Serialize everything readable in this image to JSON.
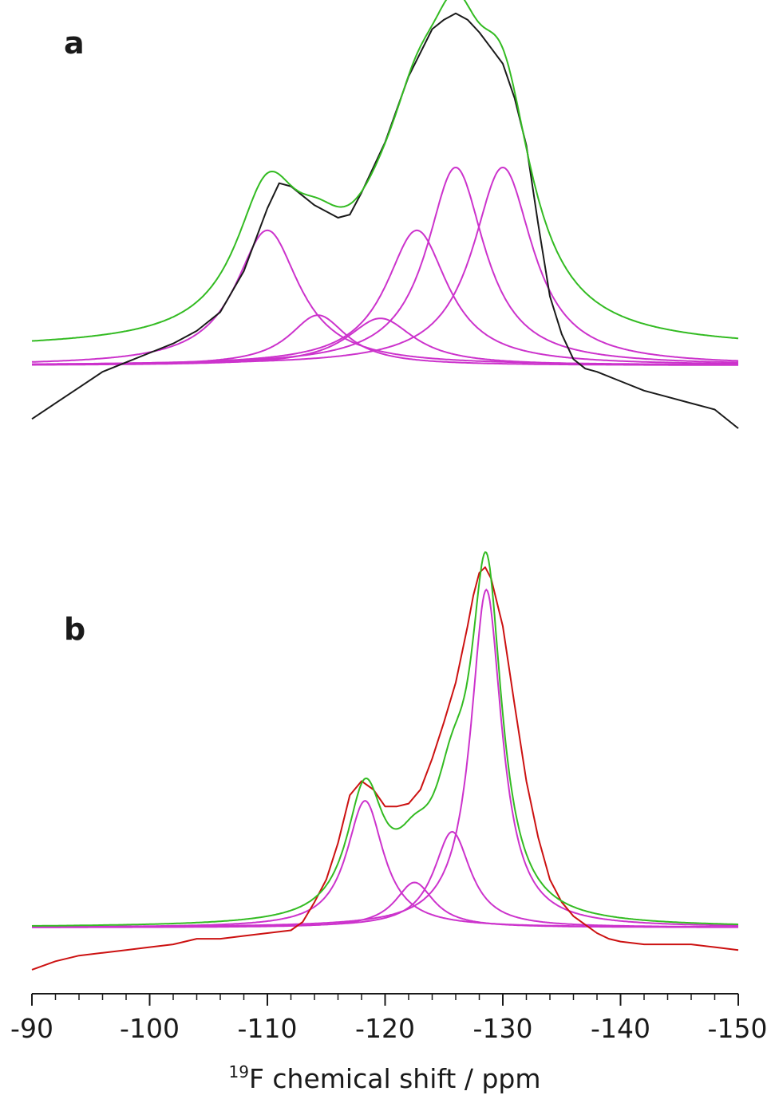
{
  "chart_data": {
    "type": "line",
    "xlabel_sup": "19",
    "xlabel_main": "F chemical shift / ppm",
    "xlim": [
      -90,
      -150
    ],
    "x_ticks_major": [
      -90,
      -100,
      -110,
      -120,
      -130,
      -140,
      -150
    ],
    "x_tick_labels": [
      "-90",
      "-100",
      "-110",
      "-120",
      "-130",
      "-140",
      "-150"
    ],
    "x_minor_step": 2,
    "y_axis_shown": false,
    "grid": false,
    "colors": {
      "experimental_a": "#1a1a1a",
      "experimental_b": "#cc1111",
      "fit_components": "#cc33cc",
      "fit_sum": "#33bb22"
    },
    "panels": [
      {
        "label": "a",
        "ylim": [
          -0.22,
          1.15
        ],
        "baseline_offset": 0.05,
        "component_baseline": 0.0,
        "components": [
          {
            "center": -110.0,
            "amplitude": 0.43,
            "hwhm": 3.3
          },
          {
            "center": -114.3,
            "amplitude": 0.16,
            "hwhm": 3.0
          },
          {
            "center": -119.6,
            "amplitude": 0.15,
            "hwhm": 3.5
          },
          {
            "center": -122.7,
            "amplitude": 0.43,
            "hwhm": 3.2
          },
          {
            "center": -126.0,
            "amplitude": 0.63,
            "hwhm": 3.0
          },
          {
            "center": -130.0,
            "amplitude": 0.63,
            "hwhm": 3.1
          }
        ],
        "experimental": {
          "x": [
            -90,
            -92,
            -94,
            -96,
            -98,
            -100,
            -102,
            -104,
            -106,
            -108,
            -110,
            -111,
            -112,
            -114,
            -116,
            -117,
            -118,
            -120,
            -122,
            -124,
            -125,
            -126,
            -127,
            -128,
            -129,
            -130,
            -131,
            -132,
            -133,
            -134,
            -135,
            -136,
            -137,
            -138,
            -140,
            -142,
            -144,
            -146,
            -148,
            -150
          ],
          "y": [
            -0.17,
            -0.12,
            -0.07,
            -0.02,
            0.01,
            0.04,
            0.07,
            0.11,
            0.17,
            0.3,
            0.5,
            0.58,
            0.57,
            0.51,
            0.47,
            0.48,
            0.55,
            0.71,
            0.92,
            1.07,
            1.1,
            1.12,
            1.1,
            1.06,
            1.01,
            0.96,
            0.85,
            0.7,
            0.45,
            0.22,
            0.1,
            0.02,
            -0.01,
            -0.02,
            -0.05,
            -0.08,
            -0.1,
            -0.12,
            -0.14,
            -0.2
          ]
        }
      },
      {
        "label": "b",
        "ylim": [
          -0.19,
          1.34
        ],
        "baseline_offset": 0.0,
        "component_baseline": 0.0,
        "components": [
          {
            "center": -118.3,
            "amplitude": 0.45,
            "hwhm": 1.9
          },
          {
            "center": -122.5,
            "amplitude": 0.16,
            "hwhm": 2.0
          },
          {
            "center": -125.7,
            "amplitude": 0.34,
            "hwhm": 1.9
          },
          {
            "center": -128.6,
            "amplitude": 1.2,
            "hwhm": 1.6
          }
        ],
        "experimental": {
          "x": [
            -90,
            -92,
            -94,
            -96,
            -98,
            -100,
            -102,
            -104,
            -106,
            -108,
            -110,
            -112,
            -113,
            -114,
            -115,
            -116,
            -117,
            -118,
            -119,
            -120,
            -121,
            -122,
            -123,
            -124,
            -125,
            -126,
            -127,
            -127.5,
            -128,
            -128.5,
            -129,
            -130,
            -131,
            -132,
            -133,
            -134,
            -135,
            -136,
            -137,
            -138,
            -139,
            -140,
            -142,
            -144,
            -146,
            -148,
            -150
          ],
          "y": [
            -0.15,
            -0.12,
            -0.1,
            -0.09,
            -0.08,
            -0.07,
            -0.06,
            -0.04,
            -0.04,
            -0.03,
            -0.02,
            -0.01,
            0.02,
            0.09,
            0.17,
            0.3,
            0.47,
            0.52,
            0.49,
            0.43,
            0.43,
            0.44,
            0.49,
            0.6,
            0.73,
            0.87,
            1.07,
            1.18,
            1.26,
            1.28,
            1.24,
            1.07,
            0.79,
            0.52,
            0.32,
            0.17,
            0.09,
            0.04,
            0.01,
            -0.02,
            -0.04,
            -0.05,
            -0.06,
            -0.06,
            -0.06,
            -0.07,
            -0.08
          ]
        }
      }
    ]
  }
}
